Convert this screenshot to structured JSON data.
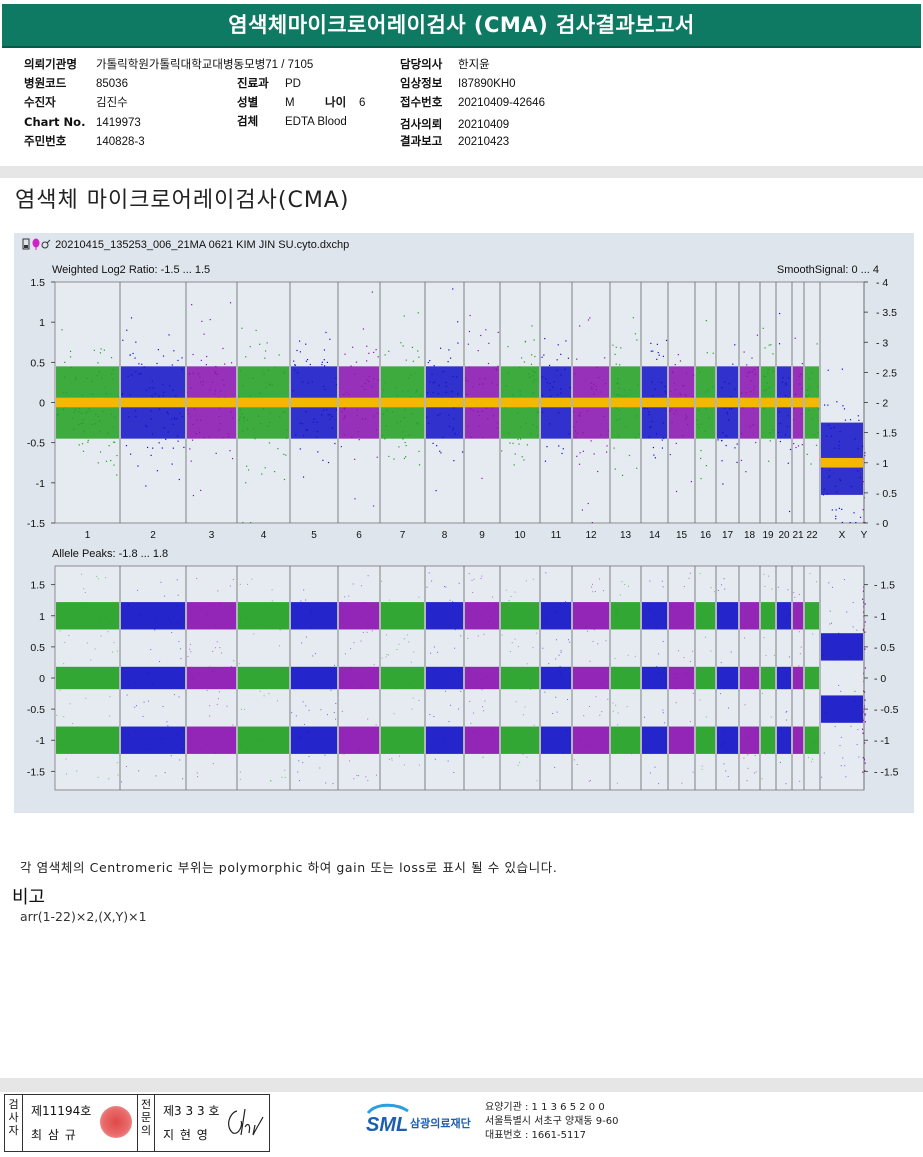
{
  "report_title": "염색체마이크로어레이검사 (CMA) 검사결과보고서",
  "info": {
    "col1": [
      {
        "label": "의뢰기관명",
        "value": "가톨릭학원가톨릭대학교대병동모병71 / 7105"
      },
      {
        "label": "병원코드",
        "value": "85036"
      },
      {
        "label": "수진자",
        "value": "김진수"
      },
      {
        "label": "Chart No.",
        "value": "1419973"
      },
      {
        "label": "주민번호",
        "value": "140828-3"
      }
    ],
    "col2": [
      {
        "label": "진료과",
        "value": "PD"
      },
      {
        "label": "성별",
        "value": "M"
      },
      {
        "label": "검체",
        "value": "EDTA Blood"
      }
    ],
    "age": {
      "label": "나이",
      "value": "6"
    },
    "col3": [
      {
        "label": "담당의사",
        "value": "한지윤"
      },
      {
        "label": "임상정보",
        "value": "I87890KH0"
      },
      {
        "label": "접수번호",
        "value": "20210409-42646"
      },
      {
        "label": "검사의뢰",
        "value": "20210409"
      },
      {
        "label": "결과보고",
        "value": "20210423"
      }
    ]
  },
  "section_title": "염색체 마이크로어레이검사(CMA)",
  "file_name": "20210415_135253_006_21MA 0621 KIM JIN SU.cyto.dxchp",
  "chart_data": [
    {
      "type": "scatter",
      "title": "Weighted Log2 Ratio: -1.5 ... 1.5",
      "right_title": "SmoothSignal: 0 ... 4",
      "ylim": [
        -1.5,
        1.5
      ],
      "y2lim": [
        0,
        4
      ],
      "yticks": [
        "1.5",
        "1",
        "0.5",
        "0",
        "-0.5",
        "-1",
        "-1.5"
      ],
      "y2ticks": [
        "4",
        "3.5",
        "3",
        "2.5",
        "2",
        "1.5",
        "1",
        "0.5",
        "0"
      ],
      "categories": [
        "1",
        "2",
        "3",
        "4",
        "5",
        "6",
        "7",
        "8",
        "9",
        "10",
        "11",
        "12",
        "13",
        "14",
        "15",
        "16",
        "17",
        "18",
        "19",
        "20",
        "21",
        "22",
        "X",
        "Y"
      ],
      "series": [
        {
          "name": "chr1",
          "values": [
            0
          ]
        },
        {
          "name": "chr2",
          "values": [
            0
          ]
        },
        {
          "name": "chr3",
          "values": [
            0
          ]
        },
        {
          "name": "chr4",
          "values": [
            0
          ]
        },
        {
          "name": "chr5",
          "values": [
            0
          ]
        },
        {
          "name": "chr6",
          "values": [
            0
          ]
        },
        {
          "name": "chr7",
          "values": [
            0
          ]
        },
        {
          "name": "chr8",
          "values": [
            0
          ]
        },
        {
          "name": "chr9",
          "values": [
            0
          ]
        },
        {
          "name": "chr10",
          "values": [
            0
          ]
        },
        {
          "name": "chr11",
          "values": [
            0
          ]
        },
        {
          "name": "chr12",
          "values": [
            0
          ]
        },
        {
          "name": "chr13",
          "values": [
            0
          ]
        },
        {
          "name": "chr14",
          "values": [
            0
          ]
        },
        {
          "name": "chr15",
          "values": [
            0
          ]
        },
        {
          "name": "chr16",
          "values": [
            0
          ]
        },
        {
          "name": "chr17",
          "values": [
            0
          ]
        },
        {
          "name": "chr18",
          "values": [
            0
          ]
        },
        {
          "name": "chr19",
          "values": [
            0
          ]
        },
        {
          "name": "chr20",
          "values": [
            0
          ]
        },
        {
          "name": "chr21",
          "values": [
            0
          ]
        },
        {
          "name": "chr22",
          "values": [
            0
          ]
        },
        {
          "name": "chrX",
          "values": [
            -0.7
          ]
        },
        {
          "name": "chrY",
          "values": [
            -0.7
          ]
        }
      ],
      "smooth_signal": {
        "autosomes": 2,
        "X": 1,
        "Y": 1
      },
      "colors": [
        "#1fa01f",
        "#1010c8",
        "#8a10b0"
      ],
      "smooth_color": "#f5b800"
    },
    {
      "type": "scatter",
      "title": "Allele Peaks: -1.8 ... 1.8",
      "ylim": [
        -1.8,
        1.8
      ],
      "yticks": [
        "1.5",
        "1",
        "0.5",
        "0",
        "-0.5",
        "-1",
        "-1.5"
      ],
      "bands_autosome": [
        1,
        0,
        -1
      ],
      "bands_X": [
        0.5,
        -0.5
      ]
    }
  ],
  "note": "각 염색체의 Centromeric 부위는 polymorphic 하여 gain 또는 loss로 표시 될 수 있습니다.",
  "bigo_label": "비고",
  "karyotype": "arr(1-22)×2,(X,Y)×1",
  "footer": {
    "v1": "검사자",
    "v2": "전문의",
    "lic1": "제11194호",
    "name1": "최 삼 규",
    "lic2": "제3 3 3 호",
    "name2": "지 현 영",
    "logo": "SML",
    "org": "삼광의료재단",
    "addr1": "요양기관 : 1 1 3 6 5 2 0 0",
    "addr2": "서울특별시 서초구 양재동 9-60",
    "addr3": "대표번호 : 1661-5117"
  }
}
